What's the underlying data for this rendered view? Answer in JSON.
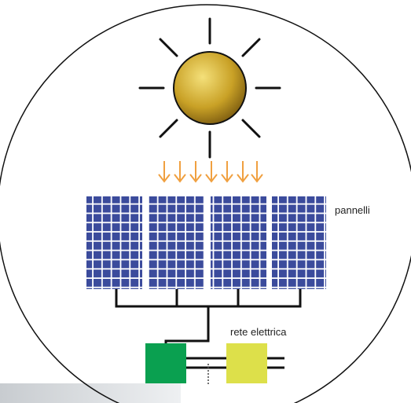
{
  "labels": {
    "panels": "pannelli",
    "grid": "rete elettrica"
  }
}
